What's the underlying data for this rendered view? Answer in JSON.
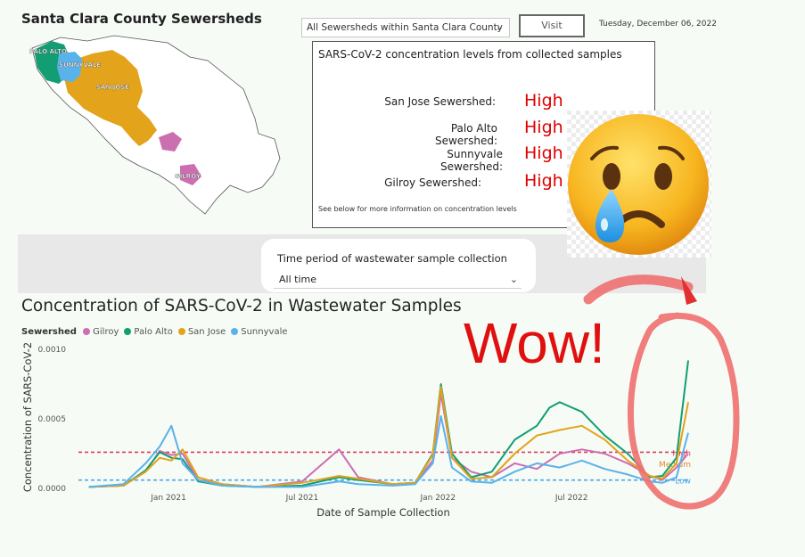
{
  "map": {
    "title": "Santa Clara County Sewersheds",
    "labels": [
      "PALO ALTO",
      "SUNNYVALE",
      "SAN JOSE",
      "GILROY"
    ]
  },
  "controls": {
    "sewershed_select": "All Sewersheds within Santa Clara County",
    "visit_label": "Visit",
    "date": "Tuesday, December 06, 2022"
  },
  "panel": {
    "title": "SARS-CoV-2 concentration levels from collected samples",
    "rows": [
      {
        "label": "San Jose Sewershed:",
        "level": "High"
      },
      {
        "label": "Palo Alto Sewershed:",
        "level": "High"
      },
      {
        "label": "Sunnyvale Sewershed:",
        "level": "High"
      },
      {
        "label": "Gilroy Sewershed:",
        "level": "High"
      }
    ],
    "note": "See below for more information on concentration levels"
  },
  "filter": {
    "label": "Time period of wastewater sample collection",
    "value": "All time"
  },
  "annotation": {
    "text": "Wow!",
    "emoji": "sad-crying-face-icon",
    "color": "#e01010"
  },
  "chart_data": {
    "type": "line",
    "title": "Concentration of SARS-CoV-2 in Wastewater Samples",
    "legend_title": "Sewershed",
    "xlabel": "Date of Sample Collection",
    "ylabel": "Concentration of SARS-CoV-2",
    "x_ticks": [
      "Jan 2021",
      "Jul 2021",
      "Jan 2022",
      "Jul 2022"
    ],
    "y_ticks": [
      "0.0000",
      "0.0005",
      "0.0010"
    ],
    "ylim": [
      0,
      0.001
    ],
    "xlim": [
      "2020-09-01",
      "2022-12-06"
    ],
    "thresholds": [
      {
        "name": "High",
        "value": 0.00026,
        "color": "#e03a5a"
      },
      {
        "name": "Medium",
        "value": 0.00018,
        "color": "#e0892a"
      },
      {
        "name": "Low",
        "value": 6e-05,
        "color": "#4aa8e8"
      }
    ],
    "series": [
      {
        "name": "Gilroy",
        "color": "#cc6fb0",
        "points": [
          [
            "2020-09-15",
            1e-05
          ],
          [
            "2020-11-01",
            2e-05
          ],
          [
            "2020-12-01",
            0.00012
          ],
          [
            "2020-12-20",
            0.00027
          ],
          [
            "2021-01-05",
            0.00024
          ],
          [
            "2021-01-20",
            0.00025
          ],
          [
            "2021-02-10",
            6e-05
          ],
          [
            "2021-03-15",
            3e-05
          ],
          [
            "2021-05-01",
            1e-05
          ],
          [
            "2021-07-01",
            5e-05
          ],
          [
            "2021-08-20",
            0.00028
          ],
          [
            "2021-09-15",
            8e-05
          ],
          [
            "2021-11-01",
            3e-05
          ],
          [
            "2021-12-01",
            4e-05
          ],
          [
            "2021-12-25",
            0.0002
          ],
          [
            "2022-01-05",
            0.00068
          ],
          [
            "2022-01-20",
            0.00022
          ],
          [
            "2022-02-15",
            0.00012
          ],
          [
            "2022-03-15",
            8e-05
          ],
          [
            "2022-04-15",
            0.00018
          ],
          [
            "2022-05-15",
            0.00014
          ],
          [
            "2022-06-15",
            0.00025
          ],
          [
            "2022-07-15",
            0.00028
          ],
          [
            "2022-08-15",
            0.00025
          ],
          [
            "2022-09-15",
            0.00018
          ],
          [
            "2022-10-15",
            9e-05
          ],
          [
            "2022-11-01",
            6e-05
          ],
          [
            "2022-11-20",
            0.00015
          ],
          [
            "2022-12-06",
            0.00025
          ]
        ]
      },
      {
        "name": "Palo Alto",
        "color": "#129e72",
        "points": [
          [
            "2020-09-15",
            1e-05
          ],
          [
            "2020-11-01",
            2e-05
          ],
          [
            "2020-12-01",
            0.00013
          ],
          [
            "2020-12-20",
            0.00026
          ],
          [
            "2021-01-05",
            0.00022
          ],
          [
            "2021-01-20",
            0.00021
          ],
          [
            "2021-02-10",
            5e-05
          ],
          [
            "2021-03-15",
            2e-05
          ],
          [
            "2021-05-01",
            1e-05
          ],
          [
            "2021-07-01",
            2e-05
          ],
          [
            "2021-08-20",
            8e-05
          ],
          [
            "2021-09-15",
            6e-05
          ],
          [
            "2021-11-01",
            3e-05
          ],
          [
            "2021-12-01",
            4e-05
          ],
          [
            "2021-12-25",
            0.00025
          ],
          [
            "2022-01-05",
            0.00075
          ],
          [
            "2022-01-20",
            0.00025
          ],
          [
            "2022-02-15",
            8e-05
          ],
          [
            "2022-03-15",
            0.00012
          ],
          [
            "2022-04-15",
            0.00035
          ],
          [
            "2022-05-15",
            0.00045
          ],
          [
            "2022-06-01",
            0.00058
          ],
          [
            "2022-06-15",
            0.00062
          ],
          [
            "2022-07-15",
            0.00055
          ],
          [
            "2022-08-15",
            0.00038
          ],
          [
            "2022-09-15",
            0.00025
          ],
          [
            "2022-10-15",
            8e-05
          ],
          [
            "2022-11-01",
            9e-05
          ],
          [
            "2022-11-20",
            0.00022
          ],
          [
            "2022-12-06",
            0.00092
          ]
        ]
      },
      {
        "name": "San Jose",
        "color": "#e3a31a",
        "points": [
          [
            "2020-09-15",
            1e-05
          ],
          [
            "2020-11-01",
            2e-05
          ],
          [
            "2020-12-01",
            0.00012
          ],
          [
            "2020-12-20",
            0.00022
          ],
          [
            "2021-01-05",
            0.0002
          ],
          [
            "2021-01-20",
            0.00028
          ],
          [
            "2021-02-10",
            8e-05
          ],
          [
            "2021-03-15",
            3e-05
          ],
          [
            "2021-05-01",
            1e-05
          ],
          [
            "2021-07-01",
            4e-05
          ],
          [
            "2021-08-20",
            9e-05
          ],
          [
            "2021-09-15",
            7e-05
          ],
          [
            "2021-11-01",
            3e-05
          ],
          [
            "2021-12-01",
            4e-05
          ],
          [
            "2021-12-25",
            0.00024
          ],
          [
            "2022-01-05",
            0.00073
          ],
          [
            "2022-01-20",
            0.00022
          ],
          [
            "2022-02-15",
            7e-05
          ],
          [
            "2022-03-15",
            8e-05
          ],
          [
            "2022-04-15",
            0.00025
          ],
          [
            "2022-05-15",
            0.00038
          ],
          [
            "2022-06-15",
            0.00042
          ],
          [
            "2022-07-15",
            0.00045
          ],
          [
            "2022-08-15",
            0.00035
          ],
          [
            "2022-09-15",
            0.0002
          ],
          [
            "2022-10-15",
            9e-05
          ],
          [
            "2022-11-01",
            7e-05
          ],
          [
            "2022-11-20",
            0.00018
          ],
          [
            "2022-12-06",
            0.00062
          ]
        ]
      },
      {
        "name": "Sunnyvale",
        "color": "#5ab2ea",
        "points": [
          [
            "2020-09-15",
            1e-05
          ],
          [
            "2020-11-01",
            3e-05
          ],
          [
            "2020-12-01",
            0.00018
          ],
          [
            "2020-12-20",
            0.0003
          ],
          [
            "2021-01-05",
            0.00045
          ],
          [
            "2021-01-20",
            0.00018
          ],
          [
            "2021-02-10",
            6e-05
          ],
          [
            "2021-03-15",
            2e-05
          ],
          [
            "2021-05-01",
            1e-05
          ],
          [
            "2021-07-01",
            1e-05
          ],
          [
            "2021-08-20",
            5e-05
          ],
          [
            "2021-09-15",
            3e-05
          ],
          [
            "2021-11-01",
            2e-05
          ],
          [
            "2021-12-01",
            3e-05
          ],
          [
            "2021-12-25",
            0.00018
          ],
          [
            "2022-01-05",
            0.00052
          ],
          [
            "2022-01-20",
            0.00015
          ],
          [
            "2022-02-15",
            5e-05
          ],
          [
            "2022-03-15",
            4e-05
          ],
          [
            "2022-04-15",
            0.00012
          ],
          [
            "2022-05-15",
            0.00018
          ],
          [
            "2022-06-15",
            0.00015
          ],
          [
            "2022-07-15",
            0.0002
          ],
          [
            "2022-08-15",
            0.00014
          ],
          [
            "2022-09-15",
            0.0001
          ],
          [
            "2022-10-15",
            5e-05
          ],
          [
            "2022-11-01",
            4e-05
          ],
          [
            "2022-11-20",
            8e-05
          ],
          [
            "2022-12-06",
            0.0004
          ]
        ]
      }
    ]
  }
}
